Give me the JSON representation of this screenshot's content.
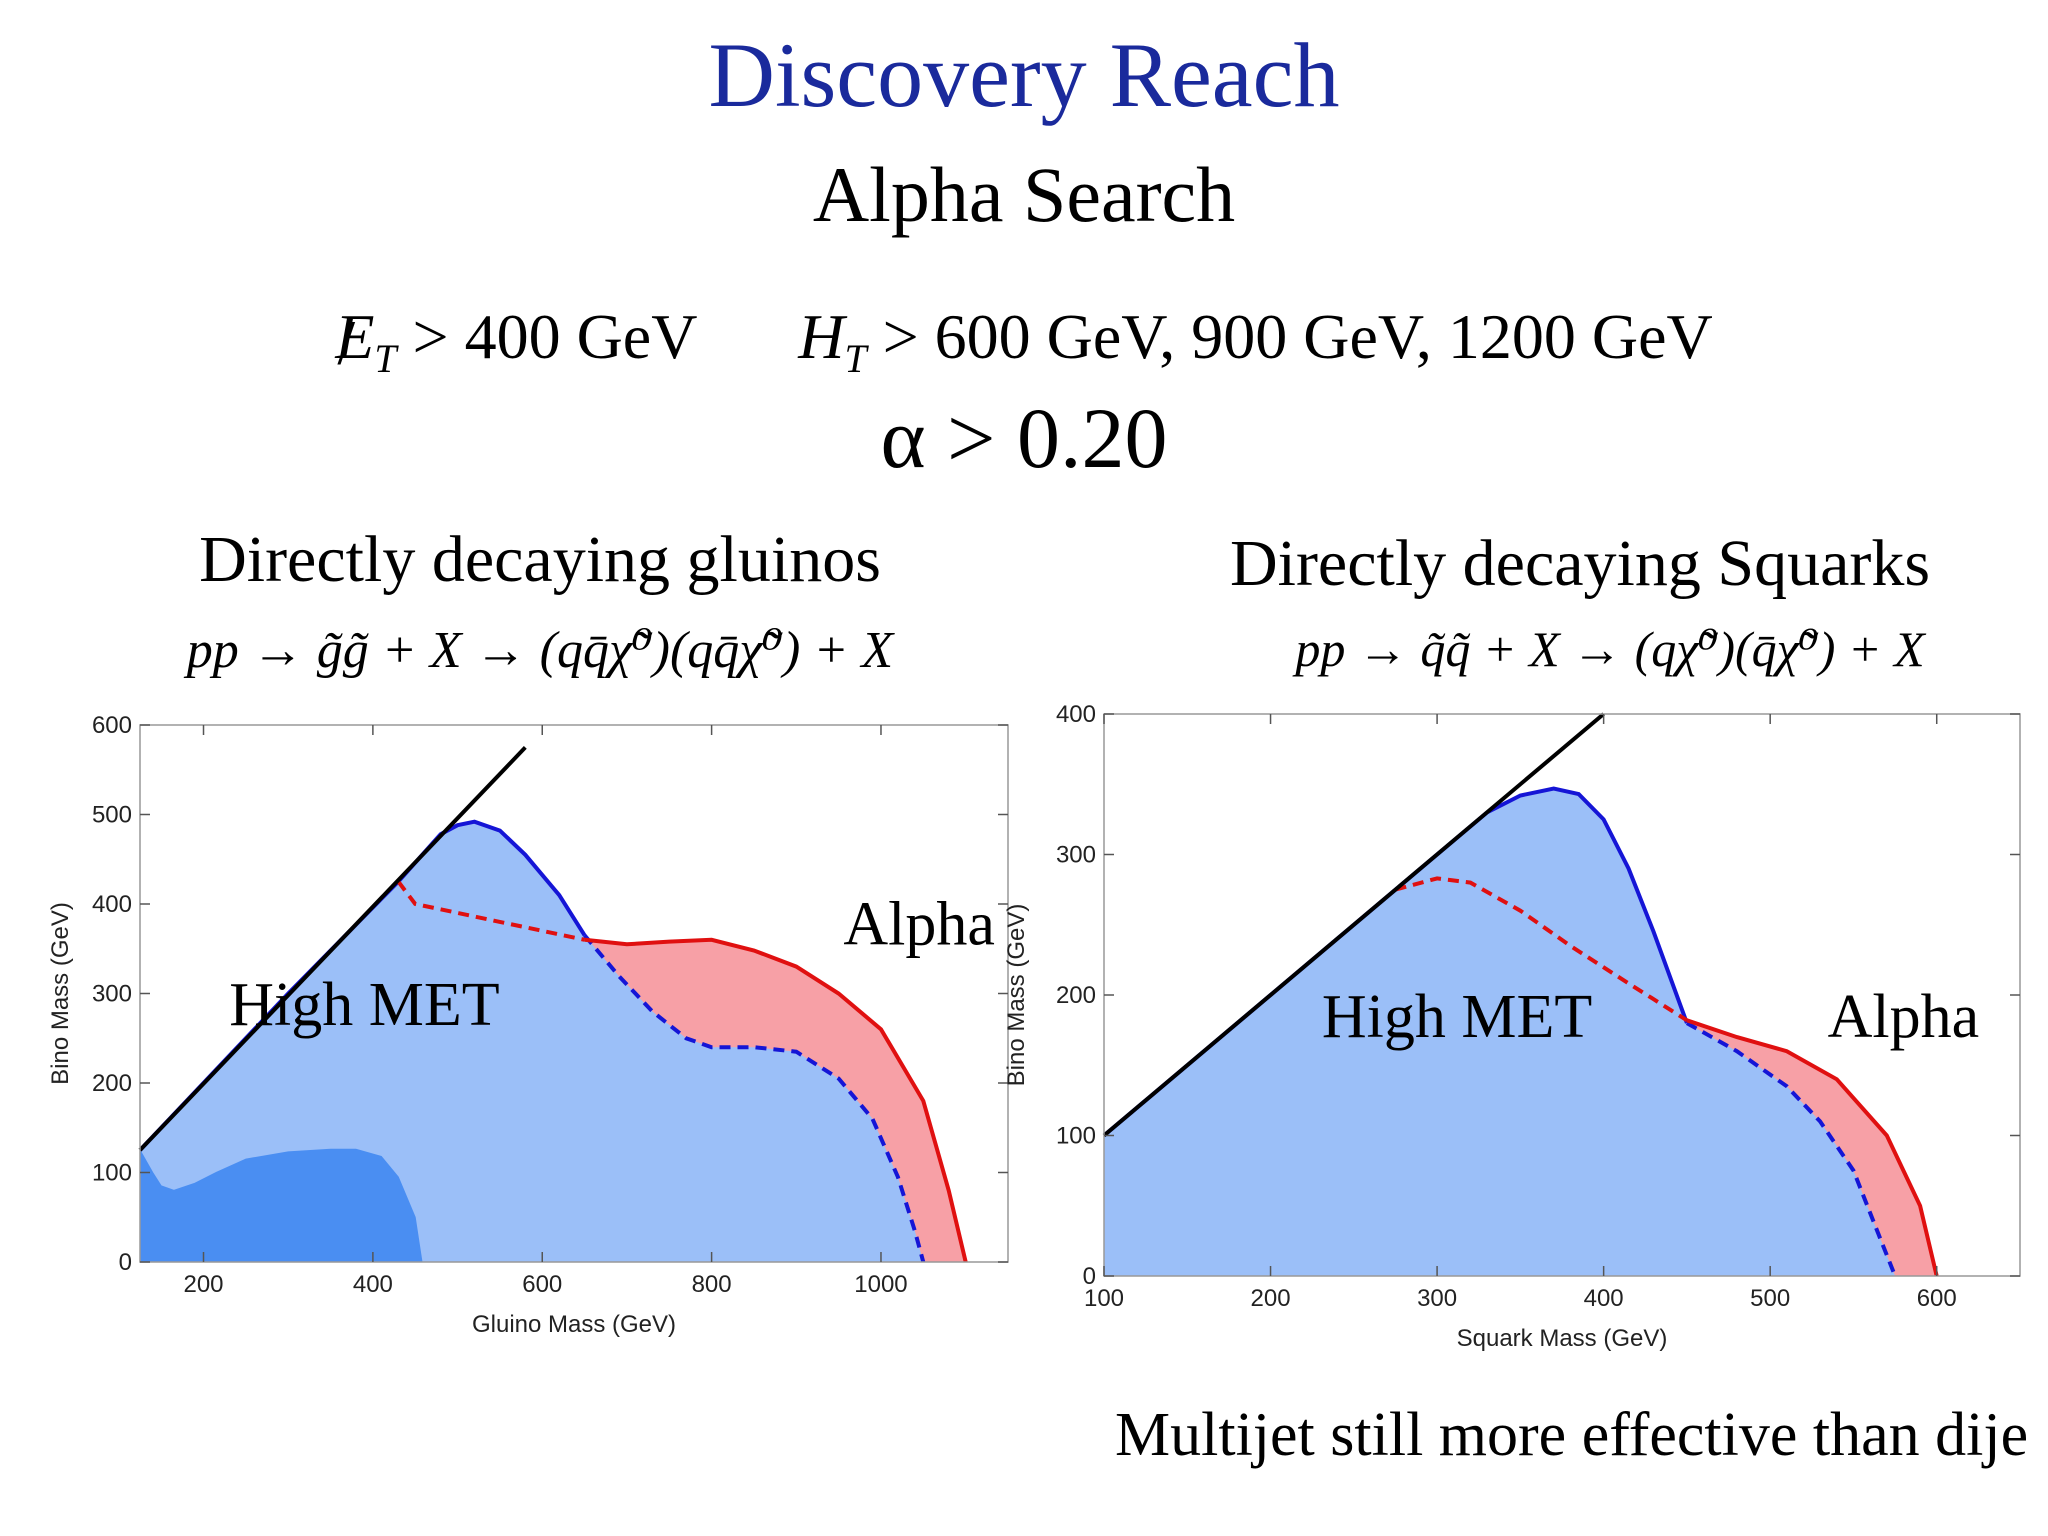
{
  "slide": {
    "title": "Discovery Reach",
    "subtitle": "Alpha Search",
    "cuts": {
      "met_symbol": "E",
      "met_sub": "T",
      "met_cut": "> 400 GeV",
      "ht_symbol": "H",
      "ht_sub": "T",
      "ht_cut": "> 600 GeV, 900 GeV, 1200 GeV"
    },
    "alpha_cut": "α > 0.20",
    "left_heading": "Directly decaying gluinos",
    "right_heading": "Directly decaying Squarks",
    "left_process": "pp → g̃g̃ + X → (qq̄χ̃⁰)(qq̄χ̃⁰) + X",
    "right_process": "pp → q̃q̃ + X → (qχ̃⁰)(q̄χ̃⁰) + X",
    "footer": "Multijet still more effective than dije"
  },
  "colors": {
    "title": "#1a2a9c",
    "high_met_fill": "#9bbff8",
    "dark_fill": "#4a8ef2",
    "alpha_fill": "#f7a0a6",
    "blue_line": "#1515d6",
    "red_line": "#e01010",
    "diagonal": "#000000"
  },
  "chart_data": [
    {
      "type": "area",
      "xlabel": "Gluino Mass (GeV)",
      "ylabel": "Bino Mass (GeV)",
      "xlim": [
        125,
        1150
      ],
      "ylim": [
        0,
        600
      ],
      "xticks": [
        200,
        400,
        600,
        800,
        1000
      ],
      "yticks": [
        0,
        100,
        200,
        300,
        400,
        500,
        600
      ],
      "grid": false,
      "annotations": [
        {
          "text": "High MET",
          "x": 390,
          "y": 265
        },
        {
          "text": "Alpha",
          "x": 1045,
          "y": 355
        }
      ],
      "series": [
        {
          "name": "High MET",
          "style": "solid-blue",
          "points": [
            [
              125,
              125
            ],
            [
              300,
              300
            ],
            [
              430,
              425
            ],
            [
              480,
              478
            ],
            [
              500,
              488
            ],
            [
              520,
              492
            ],
            [
              550,
              482
            ],
            [
              580,
              455
            ],
            [
              620,
              410
            ],
            [
              650,
              365
            ],
            [
              690,
              320
            ],
            [
              730,
              280
            ],
            [
              770,
              250
            ],
            [
              800,
              240
            ],
            [
              850,
              240
            ],
            [
              900,
              235
            ],
            [
              950,
              205
            ],
            [
              990,
              160
            ],
            [
              1020,
              95
            ],
            [
              1040,
              35
            ],
            [
              1050,
              0
            ]
          ]
        },
        {
          "name": "Alpha",
          "style": "dashed-red",
          "points": [
            [
              430,
              425
            ],
            [
              450,
              400
            ],
            [
              500,
              390
            ],
            [
              550,
              380
            ],
            [
              600,
              370
            ],
            [
              650,
              360
            ],
            [
              700,
              355
            ],
            [
              750,
              358
            ],
            [
              800,
              360
            ],
            [
              850,
              348
            ],
            [
              900,
              330
            ],
            [
              950,
              300
            ],
            [
              1000,
              260
            ],
            [
              1050,
              180
            ],
            [
              1080,
              80
            ],
            [
              1100,
              0
            ]
          ]
        },
        {
          "name": "High MET cut",
          "style": "dashed-blue",
          "points": [
            [
              650,
              365
            ],
            [
              690,
              320
            ],
            [
              730,
              280
            ],
            [
              770,
              250
            ],
            [
              800,
              240
            ],
            [
              850,
              240
            ],
            [
              900,
              235
            ],
            [
              950,
              205
            ],
            [
              990,
              160
            ],
            [
              1020,
              95
            ],
            [
              1040,
              35
            ],
            [
              1050,
              0
            ]
          ]
        },
        {
          "name": "Dark region",
          "style": "fill-dark",
          "points": [
            [
              125,
              125
            ],
            [
              140,
              100
            ],
            [
              150,
              85
            ],
            [
              165,
              80
            ],
            [
              190,
              88
            ],
            [
              215,
              100
            ],
            [
              250,
              115
            ],
            [
              300,
              123
            ],
            [
              350,
              126
            ],
            [
              380,
              126
            ],
            [
              410,
              118
            ],
            [
              430,
              95
            ],
            [
              450,
              50
            ],
            [
              458,
              0
            ],
            [
              125,
              0
            ]
          ]
        },
        {
          "name": "Kinematic limit",
          "style": "diagonal",
          "points": [
            [
              125,
              125
            ],
            [
              580,
              575
            ]
          ]
        }
      ]
    },
    {
      "type": "area",
      "xlabel": "Squark Mass (GeV)",
      "ylabel": "Bino Mass (GeV)",
      "xlim": [
        100,
        650
      ],
      "ylim": [
        0,
        400
      ],
      "xticks": [
        100,
        200,
        300,
        400,
        500,
        600
      ],
      "yticks": [
        0,
        100,
        200,
        300,
        400
      ],
      "grid": false,
      "annotations": [
        {
          "text": "High MET",
          "x": 312,
          "y": 170
        },
        {
          "text": "Alpha",
          "x": 580,
          "y": 170
        }
      ],
      "series": [
        {
          "name": "High MET",
          "style": "solid-blue",
          "points": [
            [
              100,
              100
            ],
            [
              220,
              220
            ],
            [
              300,
              300
            ],
            [
              330,
              330
            ],
            [
              350,
              342
            ],
            [
              370,
              347
            ],
            [
              385,
              343
            ],
            [
              400,
              325
            ],
            [
              415,
              290
            ],
            [
              430,
              245
            ],
            [
              450,
              180
            ],
            [
              480,
              160
            ],
            [
              510,
              135
            ],
            [
              530,
              110
            ],
            [
              550,
              75
            ],
            [
              565,
              30
            ],
            [
              575,
              0
            ]
          ]
        },
        {
          "name": "Alpha",
          "style": "dashed-red",
          "points": [
            [
              275,
              275
            ],
            [
              300,
              283
            ],
            [
              320,
              280
            ],
            [
              350,
              260
            ],
            [
              380,
              235
            ],
            [
              410,
              212
            ],
            [
              450,
              182
            ],
            [
              480,
              170
            ],
            [
              510,
              160
            ],
            [
              540,
              140
            ],
            [
              570,
              100
            ],
            [
              590,
              50
            ],
            [
              600,
              0
            ]
          ]
        },
        {
          "name": "High MET cut",
          "style": "dashed-blue",
          "points": [
            [
              450,
              180
            ],
            [
              480,
              160
            ],
            [
              510,
              135
            ],
            [
              530,
              110
            ],
            [
              550,
              75
            ],
            [
              565,
              30
            ],
            [
              575,
              0
            ]
          ]
        },
        {
          "name": "Kinematic limit",
          "style": "diagonal",
          "points": [
            [
              100,
              100
            ],
            [
              400,
              400
            ]
          ]
        }
      ]
    }
  ]
}
